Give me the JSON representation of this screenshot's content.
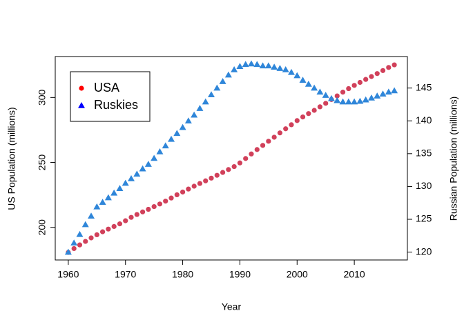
{
  "chart_data": {
    "type": "scatter",
    "x_label": "Year",
    "y_label": "US Population (millions)",
    "y2_label": "Russian Population (millions)",
    "x": [
      1960,
      1961,
      1962,
      1963,
      1964,
      1965,
      1966,
      1967,
      1968,
      1969,
      1970,
      1971,
      1972,
      1973,
      1974,
      1975,
      1976,
      1977,
      1978,
      1979,
      1980,
      1981,
      1982,
      1983,
      1984,
      1985,
      1986,
      1987,
      1988,
      1989,
      1990,
      1991,
      1992,
      1993,
      1994,
      1995,
      1996,
      1997,
      1998,
      1999,
      2000,
      2001,
      2002,
      2003,
      2004,
      2005,
      2006,
      2007,
      2008,
      2009,
      2010,
      2011,
      2012,
      2013,
      2014,
      2015,
      2016,
      2017
    ],
    "series": [
      {
        "name": "USA",
        "color": "#d1405a",
        "marker": "circle",
        "axis": "y",
        "values": [
          180.7,
          183.7,
          186.5,
          189.2,
          191.9,
          194.3,
          196.6,
          198.7,
          200.7,
          202.7,
          205.1,
          207.7,
          209.9,
          211.9,
          213.9,
          216.0,
          218.0,
          220.2,
          222.6,
          225.1,
          227.2,
          229.5,
          231.7,
          233.8,
          235.8,
          237.9,
          240.1,
          242.3,
          244.5,
          246.8,
          249.6,
          253.0,
          256.5,
          259.9,
          263.1,
          266.3,
          269.4,
          272.7,
          275.9,
          279.0,
          282.2,
          285.0,
          287.6,
          290.1,
          292.8,
          295.5,
          298.4,
          301.2,
          304.1,
          306.8,
          309.3,
          311.6,
          313.9,
          316.1,
          318.4,
          320.7,
          323.1,
          325.1
        ]
      },
      {
        "name": "Ruskies",
        "color": "#2f86d9",
        "marker": "triangle",
        "axis": "y2",
        "values": [
          120.0,
          121.4,
          122.7,
          124.2,
          125.5,
          126.9,
          127.6,
          128.3,
          129.0,
          129.7,
          130.5,
          131.2,
          131.9,
          132.7,
          133.4,
          134.3,
          135.3,
          136.2,
          137.2,
          138.1,
          139.0,
          140.0,
          140.9,
          141.9,
          142.9,
          144.0,
          145.0,
          146.0,
          147.0,
          147.8,
          148.3,
          148.6,
          148.7,
          148.6,
          148.4,
          148.4,
          148.2,
          148.0,
          147.8,
          147.4,
          146.9,
          146.2,
          145.6,
          145.0,
          144.4,
          143.9,
          143.4,
          143.1,
          142.9,
          142.9,
          142.9,
          143.0,
          143.2,
          143.5,
          143.8,
          144.1,
          144.4,
          144.6
        ]
      }
    ],
    "legend": {
      "position": "top-left",
      "colors": [
        "#ff0000",
        "#0000ff"
      ]
    },
    "xlim": [
      1957.72,
      2019.28
    ],
    "xticks": [
      1960,
      1970,
      1980,
      1990,
      2000,
      2010
    ],
    "ylim": [
      174.9,
      331.5
    ],
    "yticks": [
      200,
      250,
      300
    ],
    "y2lim": [
      118.8,
      149.8
    ],
    "y2ticks": [
      120,
      125,
      130,
      135,
      140,
      145
    ]
  }
}
